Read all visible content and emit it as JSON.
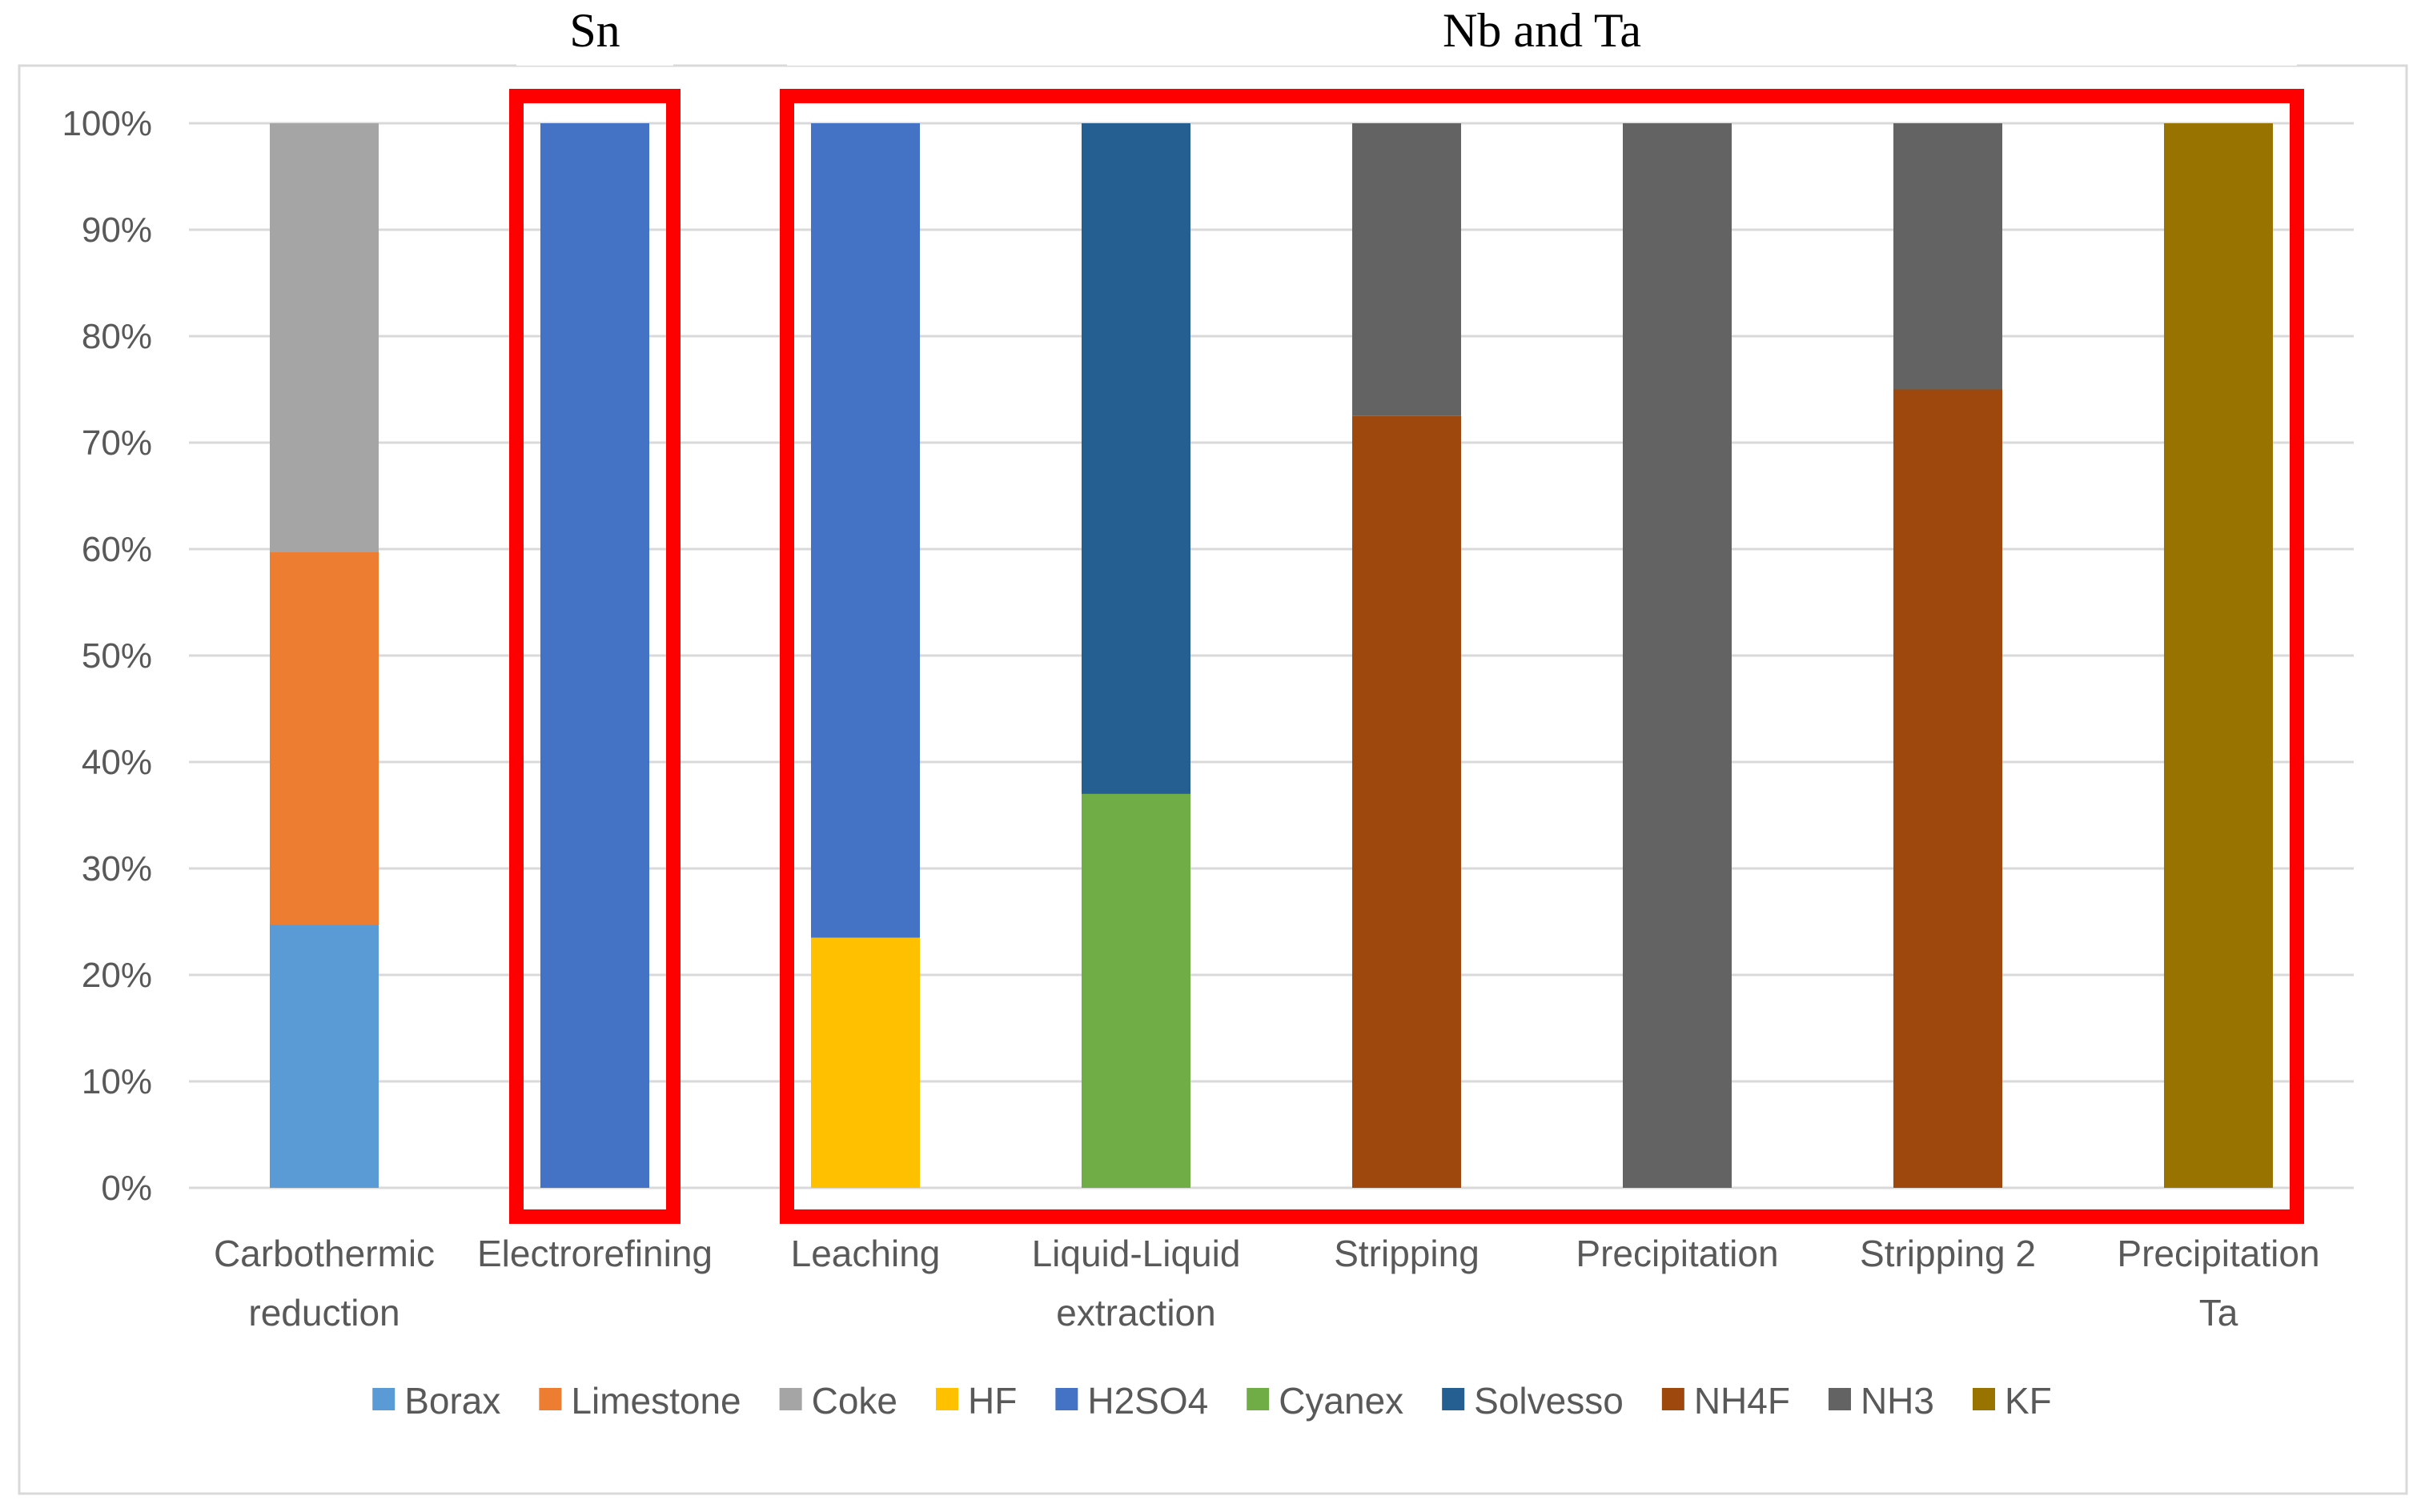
{
  "chart_data": {
    "type": "bar",
    "stacked": "percent",
    "categories": [
      [
        "Carbothermic",
        "reduction"
      ],
      [
        "Electrorefining"
      ],
      [
        "Leaching"
      ],
      [
        "Liquid-Liquid",
        "extraction"
      ],
      [
        "Stripping"
      ],
      [
        "Precipitation"
      ],
      [
        "Stripping 2"
      ],
      [
        "Precipitation",
        "Ta"
      ]
    ],
    "series": [
      {
        "name": "Borax",
        "color": "#5B9BD5",
        "values": [
          24.7,
          0,
          0,
          0,
          0,
          0,
          0,
          0
        ]
      },
      {
        "name": "Limestone",
        "color": "#ED7D31",
        "values": [
          35.0,
          0,
          0,
          0,
          0,
          0,
          0,
          0
        ]
      },
      {
        "name": "Coke",
        "color": "#A5A5A5",
        "values": [
          40.3,
          0,
          0,
          0,
          0,
          0,
          0,
          0
        ]
      },
      {
        "name": "HF",
        "color": "#FFC000",
        "values": [
          0,
          0,
          23.5,
          0,
          0,
          0,
          0,
          0
        ]
      },
      {
        "name": "H2SO4",
        "color": "#4472C4",
        "values": [
          0,
          100,
          76.5,
          0,
          0,
          0,
          0,
          0
        ]
      },
      {
        "name": "Cyanex",
        "color": "#70AD47",
        "values": [
          0,
          0,
          0,
          37.0,
          0,
          0,
          0,
          0
        ]
      },
      {
        "name": "Solvesso",
        "color": "#255E91",
        "values": [
          0,
          0,
          0,
          63.0,
          0,
          0,
          0,
          0
        ]
      },
      {
        "name": "NH4F",
        "color": "#9E480E",
        "values": [
          0,
          0,
          0,
          0,
          72.5,
          0,
          75.0,
          0
        ]
      },
      {
        "name": "NH3",
        "color": "#636363",
        "values": [
          0,
          0,
          0,
          0,
          27.5,
          100,
          25.0,
          0
        ]
      },
      {
        "name": "KF",
        "color": "#997300",
        "values": [
          0,
          0,
          0,
          0,
          0,
          0,
          0,
          100
        ]
      }
    ],
    "ylim": [
      0,
      100
    ],
    "yticks": [
      "0%",
      "10%",
      "20%",
      "30%",
      "40%",
      "50%",
      "60%",
      "70%",
      "80%",
      "90%",
      "100%"
    ],
    "legend_position": "bottom",
    "grid": true,
    "groups": [
      {
        "label": "Sn",
        "first_category": 1,
        "last_category": 1,
        "color": "#FF0000"
      },
      {
        "label": "Nb and Ta",
        "first_category": 2,
        "last_category": 7,
        "color": "#FF0000"
      }
    ]
  }
}
